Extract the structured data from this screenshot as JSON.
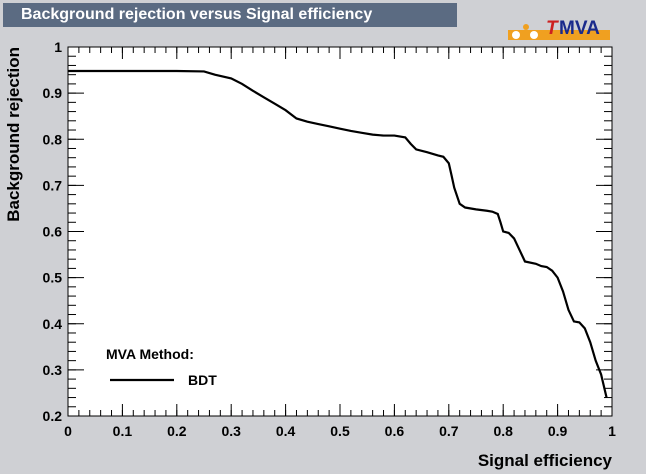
{
  "chart_data": {
    "type": "line",
    "title": "Background rejection versus Signal efficiency",
    "xlabel": "Signal efficiency",
    "ylabel": "Background rejection",
    "xlim": [
      0,
      1
    ],
    "ylim": [
      0.2,
      1
    ],
    "x_ticks": [
      "0",
      "0.1",
      "0.2",
      "0.3",
      "0.4",
      "0.5",
      "0.6",
      "0.7",
      "0.8",
      "0.9",
      "1"
    ],
    "y_ticks": [
      "0.2",
      "0.3",
      "0.4",
      "0.5",
      "0.6",
      "0.7",
      "0.8",
      "0.9",
      "1"
    ],
    "grid": false,
    "legend_placement": "bottom-left",
    "legend_header": "MVA Method:",
    "series": [
      {
        "name": "BDT",
        "color": "#000000",
        "x": [
          0.0,
          0.05,
          0.1,
          0.15,
          0.2,
          0.25,
          0.27,
          0.3,
          0.32,
          0.34,
          0.36,
          0.38,
          0.4,
          0.42,
          0.44,
          0.46,
          0.48,
          0.5,
          0.52,
          0.54,
          0.56,
          0.58,
          0.6,
          0.62,
          0.63,
          0.64,
          0.66,
          0.68,
          0.69,
          0.7,
          0.705,
          0.71,
          0.72,
          0.73,
          0.75,
          0.77,
          0.78,
          0.79,
          0.795,
          0.8,
          0.81,
          0.82,
          0.83,
          0.84,
          0.86,
          0.87,
          0.88,
          0.89,
          0.9,
          0.91,
          0.92,
          0.93,
          0.94,
          0.95,
          0.96,
          0.97,
          0.98,
          0.99
        ],
        "y": [
          0.948,
          0.948,
          0.948,
          0.948,
          0.948,
          0.947,
          0.94,
          0.932,
          0.92,
          0.905,
          0.891,
          0.877,
          0.863,
          0.845,
          0.838,
          0.833,
          0.828,
          0.823,
          0.818,
          0.814,
          0.81,
          0.808,
          0.808,
          0.804,
          0.79,
          0.778,
          0.772,
          0.765,
          0.762,
          0.748,
          0.722,
          0.695,
          0.66,
          0.652,
          0.648,
          0.645,
          0.643,
          0.638,
          0.62,
          0.6,
          0.597,
          0.585,
          0.56,
          0.535,
          0.53,
          0.525,
          0.523,
          0.515,
          0.5,
          0.47,
          0.43,
          0.405,
          0.403,
          0.39,
          0.36,
          0.32,
          0.29,
          0.24
        ]
      }
    ]
  },
  "logo": {
    "text": "TMVA",
    "colors": {
      "t": "#cc2020",
      "mva": "#1a2a8c",
      "bar": "#f0a020"
    }
  }
}
